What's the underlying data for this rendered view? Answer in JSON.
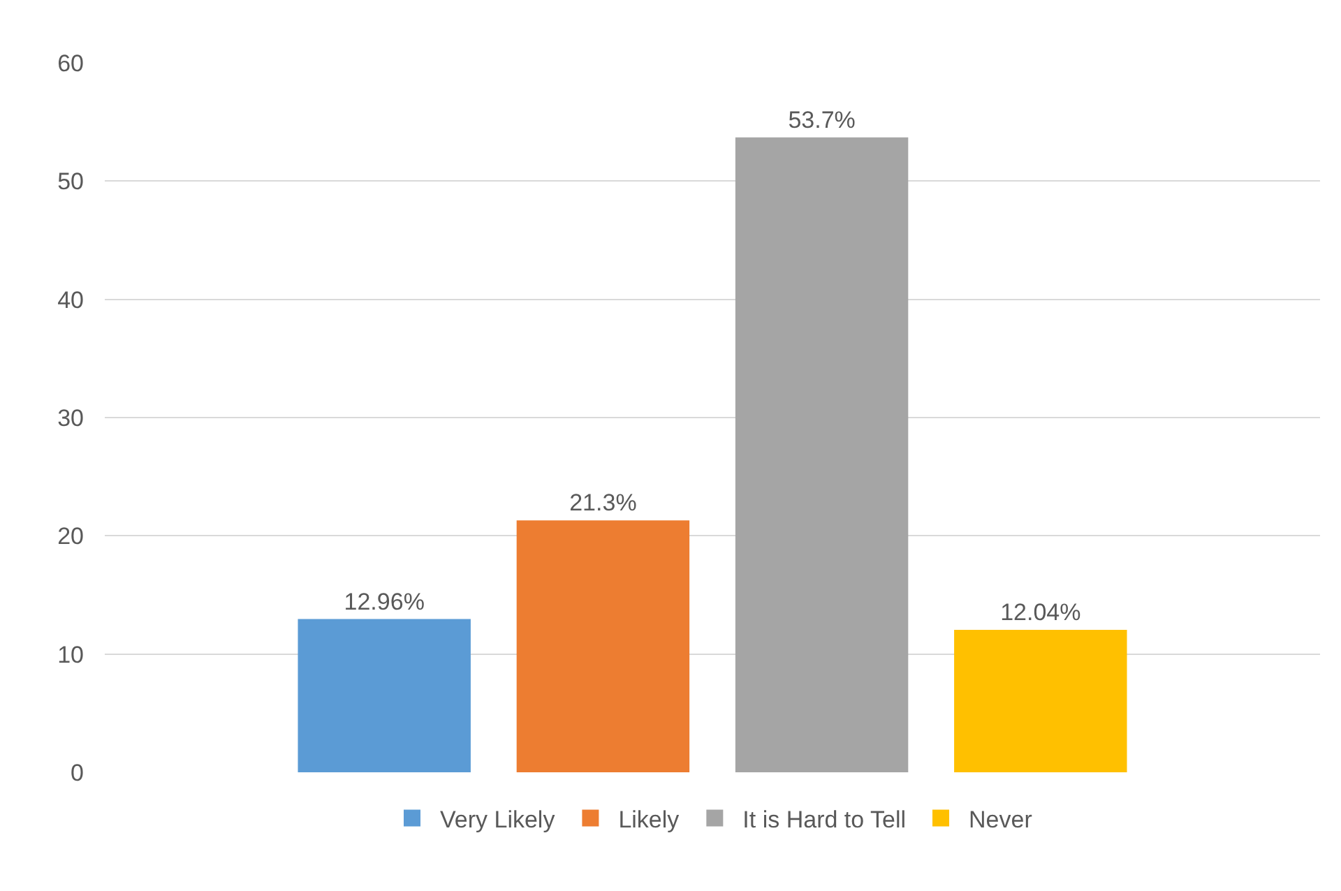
{
  "chart_data": {
    "type": "bar",
    "categories": [
      null
    ],
    "series": [
      {
        "name": "Very Likely",
        "color": "#5b9bd5",
        "values": [
          12.96
        ],
        "value_labels": [
          "12.96%"
        ]
      },
      {
        "name": "Likely",
        "color": "#ed7d31",
        "values": [
          21.3
        ],
        "value_labels": [
          "21.3%"
        ]
      },
      {
        "name": "It is Hard to Tell",
        "color": "#a5a5a5",
        "values": [
          53.7
        ],
        "value_labels": [
          "53.7%"
        ]
      },
      {
        "name": "Never",
        "color": "#ffc000",
        "values": [
          12.04
        ],
        "value_labels": [
          "12.04%"
        ]
      }
    ],
    "ylim": [
      0,
      60
    ],
    "yticks": [
      0,
      10,
      20,
      30,
      40,
      50,
      60
    ],
    "grid": "y",
    "legend": "bottom"
  }
}
